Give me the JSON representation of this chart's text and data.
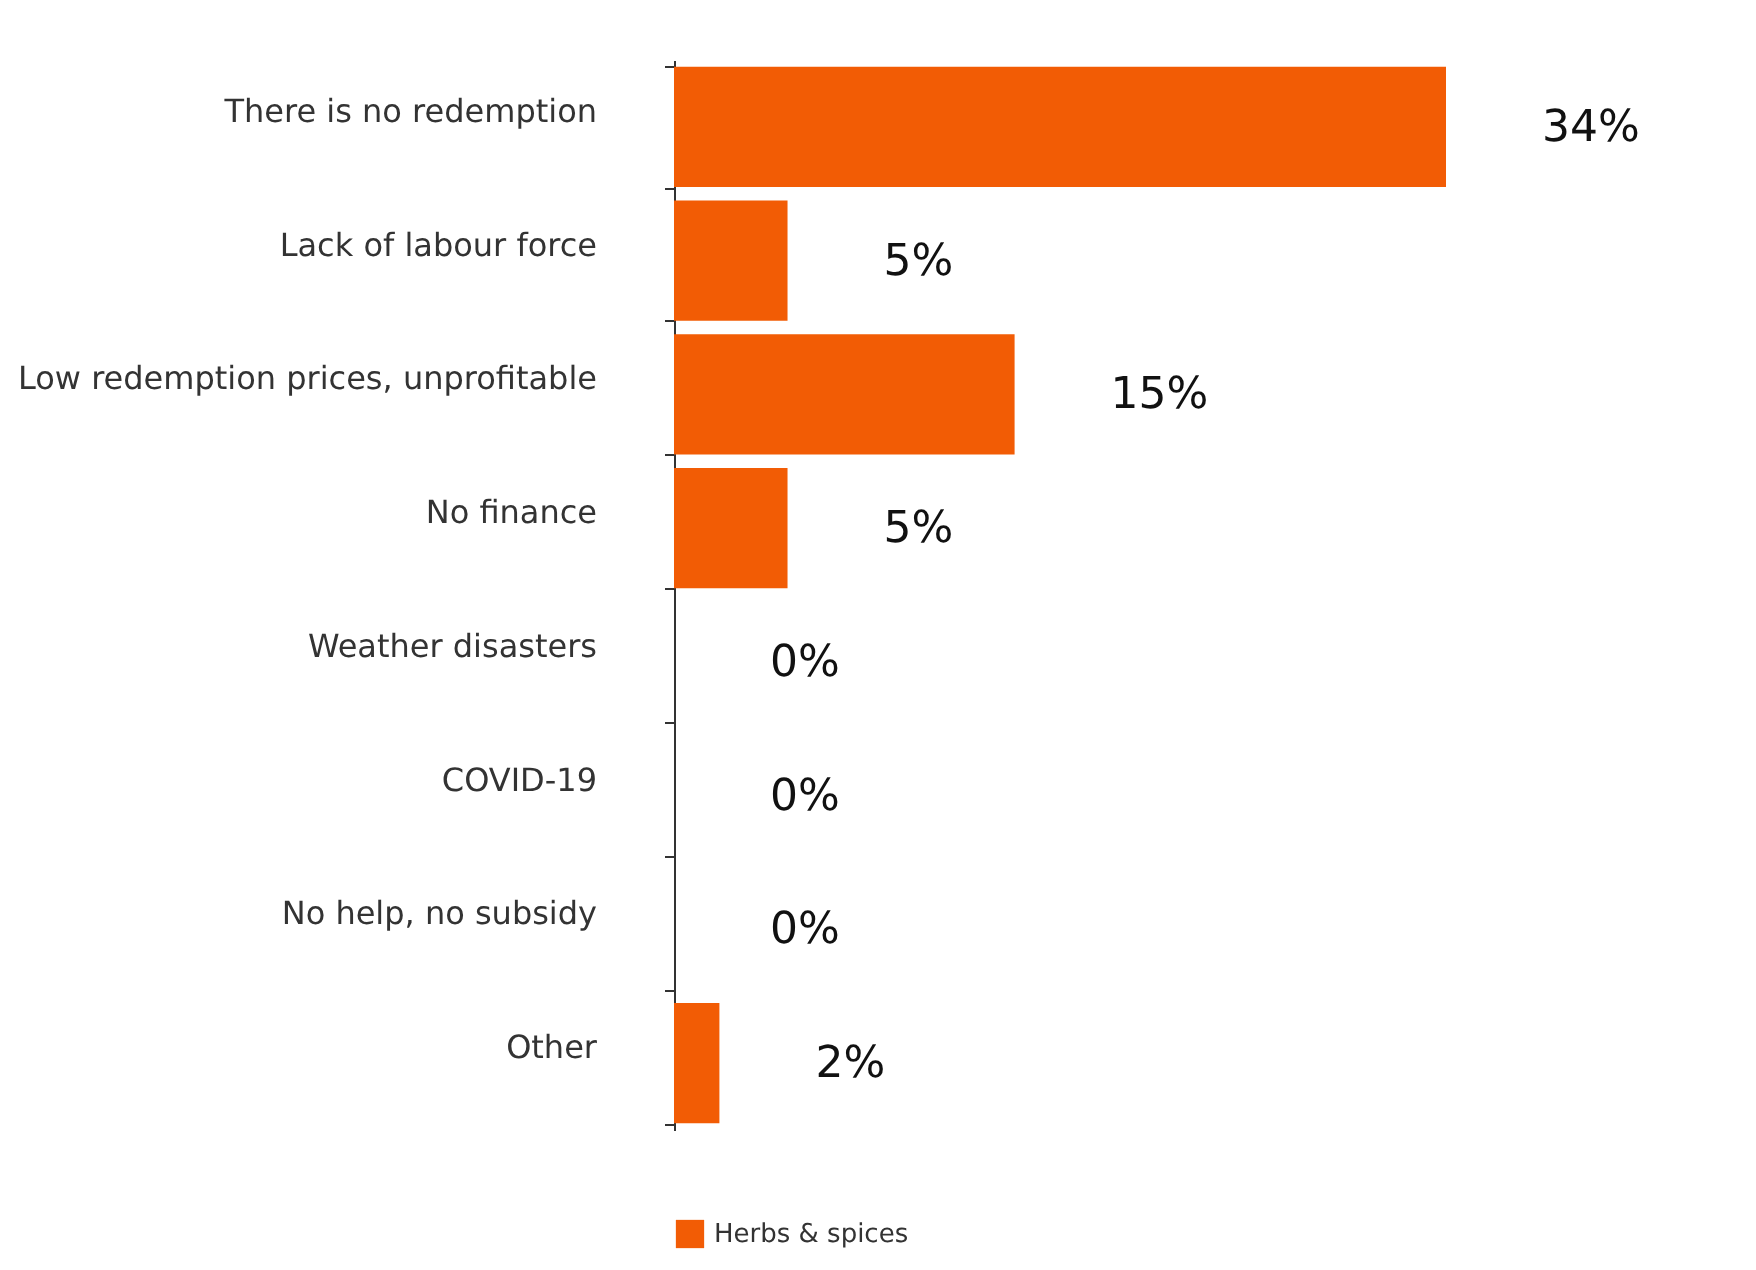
{
  "chart_data": {
    "type": "bar",
    "orientation": "horizontal",
    "categories": [
      "There is no redemption",
      "Lack of labour force",
      "Low redemption prices, unprofitable",
      "No finance",
      "Weather disasters",
      "COVID-19",
      "No help, no subsidy",
      "Other"
    ],
    "series": [
      {
        "name": "Herbs & spices",
        "color": "#f25c05",
        "values": [
          34,
          5,
          15,
          5,
          0,
          0,
          0,
          2
        ],
        "value_labels": [
          "34%",
          "5%",
          "15%",
          "5%",
          "0%",
          "0%",
          "0%",
          "2%"
        ]
      }
    ],
    "legend": "bottom"
  }
}
